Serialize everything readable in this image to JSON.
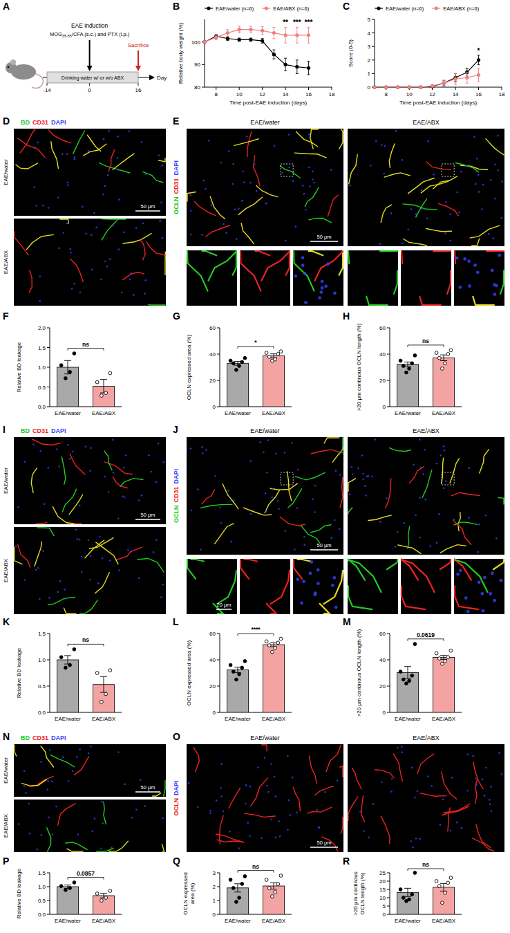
{
  "schematic": {
    "panel_label": "A",
    "event": "EAE induction",
    "agent": {
      "base": "MOG",
      "sub": "35-55",
      "rest": "/CFA (s.c.) and PTX (i.p.)"
    },
    "endpoint": "Sacrifice",
    "treatment": "Drinking water w/ or w/o ABX",
    "days": [
      -14,
      0,
      16
    ],
    "unit": "Day"
  },
  "chart_data": [
    {
      "panel_label": "B",
      "type": "line",
      "y_label": "Relative body weight (%)",
      "x_label": "Time post-EAE induction (days)",
      "x": [
        7,
        8,
        9,
        10,
        11,
        12,
        13,
        14,
        15,
        16
      ],
      "xlim": [
        7,
        18
      ],
      "xticks": [
        8,
        10,
        12,
        14,
        16,
        18
      ],
      "ylim": [
        80,
        110
      ],
      "yticks": [
        80,
        90,
        100
      ],
      "legend": "top",
      "series": [
        {
          "name": "EAE/water (n=6)",
          "color": "#000000",
          "marker": "circle",
          "values": [
            100,
            102.5,
            101.5,
            101,
            101,
            100.5,
            94.5,
            90,
            89,
            88.5
          ],
          "errors": [
            0,
            0.8,
            0.8,
            0.7,
            0.7,
            1,
            2,
            2.8,
            3,
            3
          ]
        },
        {
          "name": "EAE/ABX (n=6)",
          "color": "#f08080",
          "marker": "circle",
          "values": [
            100,
            102,
            104,
            105.5,
            105.5,
            105,
            104,
            103,
            103,
            103
          ],
          "errors": [
            0,
            1,
            1.5,
            1.5,
            1.5,
            1.8,
            2.5,
            3.5,
            3.5,
            3.5
          ]
        }
      ],
      "annotations": [
        {
          "x": 14,
          "text": "**"
        },
        {
          "x": 15,
          "text": "***"
        },
        {
          "x": 16,
          "text": "***"
        }
      ]
    },
    {
      "panel_label": "C",
      "type": "line",
      "y_label": "Score (0-5)",
      "x_label": "Time post-EAE induction (days)",
      "x": [
        7,
        8,
        9,
        10,
        11,
        12,
        13,
        14,
        15,
        16
      ],
      "xlim": [
        7,
        18
      ],
      "xticks": [
        8,
        10,
        12,
        14,
        16,
        18
      ],
      "ylim": [
        0,
        5
      ],
      "yticks": [
        0,
        1,
        2,
        3,
        4,
        5
      ],
      "legend": "top",
      "series": [
        {
          "name": "EAE/water (n=6)",
          "color": "#000000",
          "marker": "circle",
          "values": [
            0,
            0,
            0,
            0,
            0,
            0.05,
            0.3,
            0.7,
            1.1,
            2.0
          ],
          "errors": [
            0,
            0,
            0,
            0,
            0,
            0.05,
            0.2,
            0.3,
            0.3,
            0.35
          ]
        },
        {
          "name": "EAE/ABX (n=6)",
          "color": "#f08080",
          "marker": "circle",
          "values": [
            0,
            0,
            0,
            0,
            0,
            0.1,
            0.3,
            0.6,
            0.7,
            0.9
          ],
          "errors": [
            0,
            0,
            0,
            0,
            0,
            0.1,
            0.2,
            0.4,
            0.4,
            0.5
          ]
        }
      ],
      "annotations": [
        {
          "x": 16,
          "text": "*"
        }
      ]
    },
    {
      "panel_label": "F",
      "type": "bar",
      "y_label": "Relative BD leakage",
      "categories": [
        "EAE/water",
        "EAE/ABX"
      ],
      "values": [
        1.0,
        0.52
      ],
      "errors": [
        0.17,
        0.17
      ],
      "points": [
        [
          0.72,
          0.88,
          1.05,
          1.35
        ],
        [
          0.28,
          0.35,
          0.62,
          0.85
        ]
      ],
      "colors": [
        "#a9a9a9",
        "#f4a3a3"
      ],
      "ylim": [
        0,
        2
      ],
      "yticks": [
        {
          "value": 0,
          "label": "0.0"
        },
        0.5,
        {
          "value": 1,
          "label": "1.0"
        },
        1.5,
        {
          "value": 2,
          "label": "2.0"
        }
      ],
      "annotation": "ns"
    },
    {
      "panel_label": "G",
      "type": "bar",
      "y_label": "OCLN expressed area (%)",
      "categories": [
        "EAE/water",
        "EAE/ABX"
      ],
      "values": [
        33,
        38.7
      ],
      "errors": [
        1.5,
        1.5
      ],
      "points": [
        [
          28,
          31,
          33,
          34,
          35,
          37
        ],
        [
          35,
          36,
          38,
          40,
          41,
          42
        ]
      ],
      "colors": [
        "#a9a9a9",
        "#f4a3a3"
      ],
      "ylim": [
        0,
        60
      ],
      "yticks": [
        0,
        20,
        40,
        60
      ],
      "annotation": "*"
    },
    {
      "panel_label": "H",
      "type": "bar",
      "y_label": ">20 μm continous OCLN length (%)",
      "categories": [
        "EAE/water",
        "EAE/ABX"
      ],
      "values": [
        32.2,
        37.2
      ],
      "errors": [
        1.8,
        2.2
      ],
      "points": [
        [
          26,
          29,
          31,
          33,
          35,
          39
        ],
        [
          29,
          33,
          37,
          40,
          41,
          43
        ]
      ],
      "colors": [
        "#a9a9a9",
        "#f4a3a3"
      ],
      "ylim": [
        0,
        60
      ],
      "yticks": [
        0,
        20,
        40,
        60
      ],
      "annotation": "ns"
    },
    {
      "panel_label": "K",
      "type": "bar",
      "y_label": "Relative BD leakage",
      "categories": [
        "EAE/water",
        "EAE/ABX"
      ],
      "values": [
        1.0,
        0.53
      ],
      "errors": [
        0.08,
        0.15
      ],
      "points": [
        [
          0.85,
          0.9,
          1.05,
          1.2
        ],
        [
          0.2,
          0.35,
          0.75,
          0.8
        ]
      ],
      "colors": [
        "#a9a9a9",
        "#f4a3a3"
      ],
      "ylim": [
        0,
        1.5
      ],
      "yticks": [
        {
          "value": 0,
          "label": "0.0"
        },
        0.5,
        {
          "value": 1,
          "label": "1.0"
        },
        1.5
      ],
      "annotation": "ns"
    },
    {
      "panel_label": "L",
      "type": "bar",
      "y_label": "OCLN expressed area (%)",
      "categories": [
        "EAE/water",
        "EAE/ABX"
      ],
      "values": [
        32.3,
        51.5
      ],
      "errors": [
        2.1,
        1.5
      ],
      "points": [
        [
          25,
          29,
          31,
          34,
          36,
          39
        ],
        [
          46,
          49,
          51,
          53,
          54,
          56
        ]
      ],
      "colors": [
        "#a9a9a9",
        "#f4a3a3"
      ],
      "ylim": [
        0,
        60
      ],
      "yticks": [
        0,
        20,
        40,
        60
      ],
      "annotation": "****"
    },
    {
      "panel_label": "M",
      "type": "bar",
      "y_label": ">20 μm continous OCLN length (%)",
      "categories": [
        "EAE/water",
        "EAE/ABX"
      ],
      "values": [
        30.3,
        41.8
      ],
      "errors": [
        4.6,
        1.5
      ],
      "points": [
        [
          22,
          24,
          25,
          28,
          31,
          52
        ],
        [
          37,
          39,
          41,
          42,
          45,
          47
        ]
      ],
      "colors": [
        "#a9a9a9",
        "#f4a3a3"
      ],
      "ylim": [
        0,
        60
      ],
      "yticks": [
        0,
        20,
        40,
        60
      ],
      "annotation": "0.0619"
    },
    {
      "panel_label": "P",
      "type": "bar",
      "y_label": "Relative BD leakage",
      "categories": [
        "EAE/water",
        "EAE/ABX"
      ],
      "values": [
        1.0,
        0.675
      ],
      "errors": [
        0.06,
        0.08
      ],
      "points": [
        [
          0.88,
          0.95,
          1.02,
          1.15
        ],
        [
          0.5,
          0.6,
          0.75,
          0.85
        ]
      ],
      "colors": [
        "#a9a9a9",
        "#f4a3a3"
      ],
      "ylim": [
        0,
        1.5
      ],
      "yticks": [
        {
          "value": 0,
          "label": "0.0"
        },
        0.5,
        {
          "value": 1,
          "label": "1.0"
        },
        1.5
      ],
      "annotation": "0.0857"
    },
    {
      "panel_label": "Q",
      "type": "bar",
      "y_label": "OCLN expressed area (%)",
      "categories": [
        "EAE/water",
        "EAE/ABX"
      ],
      "values": [
        1.91,
        2.05
      ],
      "errors": [
        0.3,
        0.23
      ],
      "points": [
        [
          0.9,
          1.2,
          1.9,
          2.2,
          2.5,
          2.75
        ],
        [
          1.3,
          1.6,
          1.9,
          2.2,
          2.5,
          2.8
        ]
      ],
      "colors": [
        "#a9a9a9",
        "#f4a3a3"
      ],
      "ylim": [
        0,
        3
      ],
      "yticks": [
        0,
        1,
        2,
        3
      ],
      "annotation": "ns"
    },
    {
      "panel_label": "R",
      "type": "bar",
      "y_label": ">20 μm continous OCLN length (%)",
      "categories": [
        "EAE/water",
        "EAE/ABX"
      ],
      "values": [
        13.2,
        16.3
      ],
      "errors": [
        2.5,
        2.3
      ],
      "points": [
        [
          8,
          9,
          10,
          12,
          15,
          25
        ],
        [
          7,
          13,
          17,
          19,
          20,
          22
        ]
      ],
      "colors": [
        "#a9a9a9",
        "#f4a3a3"
      ],
      "ylim": [
        0,
        25
      ],
      "yticks": [
        0,
        5,
        10,
        15,
        20,
        25
      ],
      "annotation": "ns"
    }
  ],
  "images": [
    {
      "panel_label": "D",
      "channels": [
        {
          "text": "BD",
          "color": "#22cc22"
        },
        {
          "text": "CD31",
          "color": "#ee2222"
        },
        {
          "text": "DAPI",
          "color": "#3344ff"
        }
      ],
      "groups": [
        "EAE/water",
        "EAE/ABX"
      ],
      "scale_bar": "50 μm"
    },
    {
      "panel_label": "E",
      "channels": [
        {
          "text": "OCLN",
          "color": "#22cc22"
        },
        {
          "text": "CD31",
          "color": "#ee2222"
        },
        {
          "text": "DAPI",
          "color": "#3344ff"
        }
      ],
      "groups": [
        "EAE/water",
        "EAE/ABX"
      ],
      "scale_bar": "50 μm"
    },
    {
      "panel_label": "I",
      "channels": [
        {
          "text": "BD",
          "color": "#22cc22"
        },
        {
          "text": "CD31",
          "color": "#ee2222"
        },
        {
          "text": "DAPI",
          "color": "#3344ff"
        }
      ],
      "groups": [
        "EAE/water",
        "EAE/ABX"
      ],
      "scale_bar": "50 μm"
    },
    {
      "panel_label": "J",
      "channels": [
        {
          "text": "OCLN",
          "color": "#22cc22"
        },
        {
          "text": "CD31",
          "color": "#ee2222"
        },
        {
          "text": "DAPI",
          "color": "#3344ff"
        }
      ],
      "groups": [
        "EAE/water",
        "EAE/ABX"
      ],
      "scale_bar": "50 μm",
      "inset_scale_bar": "20 μm"
    },
    {
      "panel_label": "N",
      "channels": [
        {
          "text": "BD",
          "color": "#22cc22"
        },
        {
          "text": "CD31",
          "color": "#ee2222"
        },
        {
          "text": "DAPI",
          "color": "#3344ff"
        }
      ],
      "groups": [
        "EAE/water",
        "EAE/ABX"
      ],
      "scale_bar": "50 μm"
    },
    {
      "panel_label": "O",
      "channels": [
        {
          "text": "OCLN",
          "color": "#ee2222"
        },
        {
          "text": "DAPI",
          "color": "#3344ff"
        }
      ],
      "groups": [
        "EAE/water",
        "EAE/ABX"
      ],
      "scale_bar": "50 μm"
    }
  ]
}
